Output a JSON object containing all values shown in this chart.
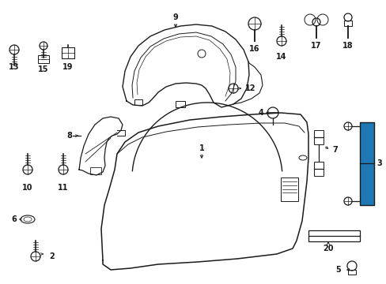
{
  "bg_color": "#ffffff",
  "line_color": "#1a1a1a",
  "text_color": "#1a1a1a",
  "lw": 0.9,
  "fontsize": 7.0
}
